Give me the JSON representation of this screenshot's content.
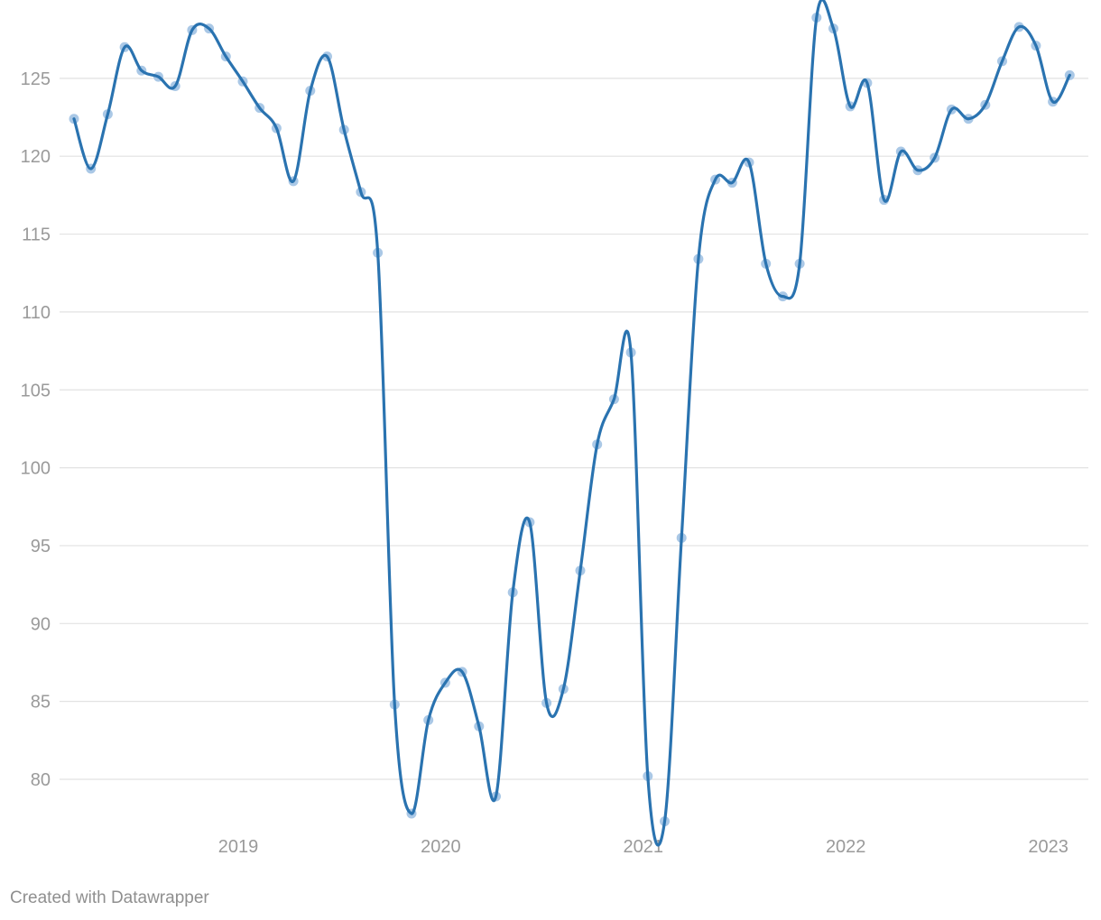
{
  "chart_data": {
    "type": "line",
    "x": [
      "2018-09",
      "2018-10",
      "2018-11",
      "2018-12",
      "2019-01",
      "2019-02",
      "2019-03",
      "2019-04",
      "2019-05",
      "2019-06",
      "2019-07",
      "2019-08",
      "2019-09",
      "2019-10",
      "2019-11",
      "2019-12",
      "2020-01",
      "2020-02",
      "2020-03",
      "2020-04",
      "2020-05",
      "2020-06",
      "2020-07",
      "2020-08",
      "2020-09",
      "2020-10",
      "2020-11",
      "2020-12",
      "2021-01",
      "2021-02",
      "2021-03",
      "2021-04",
      "2021-05",
      "2021-06",
      "2021-07",
      "2021-08",
      "2021-09",
      "2021-10",
      "2021-11",
      "2021-12",
      "2022-01",
      "2022-02",
      "2022-03",
      "2022-04",
      "2022-05",
      "2022-06",
      "2022-07",
      "2022-08",
      "2022-09",
      "2022-10",
      "2022-11",
      "2022-12",
      "2023-01",
      "2023-02",
      "2023-03",
      "2023-04",
      "2023-05",
      "2023-06",
      "2023-07",
      "2023-08"
    ],
    "series": [
      {
        "values": [
          122.4,
          119.2,
          122.7,
          127.0,
          125.5,
          125.1,
          124.5,
          128.1,
          128.2,
          126.4,
          124.8,
          123.1,
          121.8,
          118.4,
          124.2,
          126.4,
          121.7,
          117.7,
          113.8,
          84.8,
          77.8,
          83.8,
          86.2,
          86.9,
          83.4,
          78.9,
          92.0,
          96.5,
          84.9,
          85.8,
          93.4,
          101.5,
          104.4,
          107.4,
          80.2,
          77.3,
          95.5,
          113.4,
          118.5,
          118.3,
          119.6,
          113.1,
          111.0,
          113.1,
          128.9,
          128.2,
          123.2,
          124.7,
          117.2,
          120.3,
          119.1,
          119.9,
          123.0,
          122.4,
          123.3,
          126.1,
          128.3,
          127.1,
          123.5,
          125.2
        ]
      }
    ],
    "x_tick_labels": [
      "2019",
      "2020",
      "2021",
      "2022",
      "2023"
    ],
    "y_ticks": [
      80,
      85,
      90,
      95,
      100,
      105,
      110,
      115,
      120,
      125
    ],
    "ylim": [
      76.5,
      129.5
    ],
    "grid": true,
    "title": "",
    "xlabel": "",
    "ylabel": "",
    "colors": {
      "line": "#2a73b0",
      "marker": "#aac8e6",
      "grid": "#e2e2e2",
      "tick_text": "#9a9a9a"
    }
  },
  "credit": "Created with Datawrapper"
}
